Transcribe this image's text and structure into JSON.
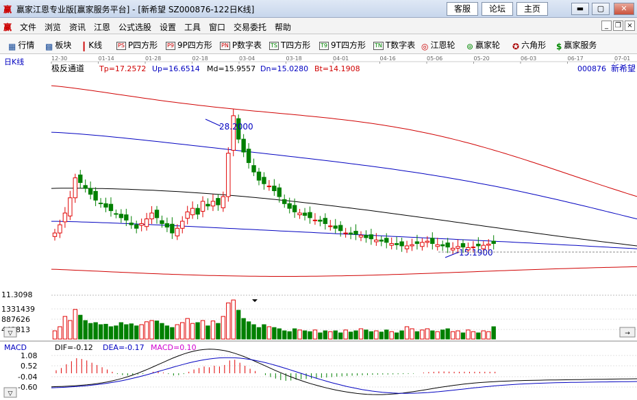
{
  "window": {
    "logo": "赢",
    "title": "赢家江恩专业版[赢家服务平台] - [新希望  SZ000876-122日K线]",
    "buttons": [
      "客服",
      "论坛",
      "主页"
    ]
  },
  "menu": [
    "文件",
    "浏览",
    "资讯",
    "江恩",
    "公式选股",
    "设置",
    "工具",
    "窗口",
    "交易委托",
    "帮助"
  ],
  "toolbar": [
    "行情",
    "板块",
    "K线",
    "P四方形",
    "9P四方形",
    "P数字表",
    "T四方形",
    "9T四方形",
    "T数字表",
    "江恩轮",
    "赢家轮",
    "六角形",
    "赢家服务"
  ],
  "toolbar_icons": [
    "grid-icon",
    "blocks-icon",
    "candle-icon",
    "PS",
    "P9",
    "PN",
    "TS",
    "T9",
    "TN",
    "wheel-icon",
    "big-wheel-icon",
    "hexagon-icon",
    "dollar-icon"
  ],
  "chart_header": {
    "period": "日K线",
    "indicator": "极反通道",
    "tp": "Tp=17.2572",
    "up": "Up=16.6514",
    "md": "Md=15.9557",
    "dn": "Dn=15.0280",
    "bt": "Bt=14.1908",
    "stock_code": "000876",
    "stock_name": "新希望"
  },
  "dates": [
    "12-30",
    "01-14",
    "01-28",
    "02-18",
    "03-04",
    "03-18",
    "04-01",
    "04-16",
    "05-06",
    "05-20",
    "06-03",
    "06-17",
    "07-01"
  ],
  "annotations": {
    "high": "28.2000",
    "low": "15.1900",
    "axis_low": "11.3098"
  },
  "volume_axis": [
    "1331439",
    "887626",
    "443813"
  ],
  "macd": {
    "label": "MACD",
    "dif": "DIF=-0.12",
    "dea": "DEA=-0.17",
    "macd": "MACD=0.10",
    "axis": [
      "1.08",
      "0.52",
      "-0.04",
      "-0.60"
    ]
  },
  "colors": {
    "up": "#e00000",
    "down": "#008000",
    "channel_outer": "#d00000",
    "channel_inner": "#0000c0",
    "mid": "#000000"
  },
  "chart_data": {
    "type": "candlestick",
    "close": [
      16.5,
      17.2,
      18.2,
      19.5,
      21.2,
      20.8,
      20.3,
      19.8,
      19.3,
      19.0,
      18.7,
      18.4,
      18.1,
      17.8,
      17.6,
      17.2,
      16.9,
      17.3,
      17.7,
      18.2,
      17.8,
      17.3,
      17.0,
      16.5,
      16.9,
      17.5,
      18.3,
      18.6,
      18.1,
      19.2,
      18.8,
      19.2,
      18.9,
      19.6,
      23.3,
      26.5,
      24.5,
      23.4,
      22.5,
      21.7,
      21.0,
      20.7,
      20.5,
      20.1,
      19.6,
      19.0,
      18.6,
      18.3,
      18.2,
      18.0,
      17.8,
      17.6,
      17.5,
      17.3,
      17.1,
      16.9,
      16.7,
      16.5,
      16.4,
      16.4,
      16.3,
      16.1,
      16.0,
      15.9,
      15.8,
      15.7,
      15.6,
      15.5,
      15.4,
      15.4,
      15.5,
      15.6,
      15.7,
      15.8,
      15.6,
      15.5,
      15.4,
      15.3,
      15.2,
      15.35,
      15.3,
      15.25,
      15.3,
      15.4,
      15.45,
      15.55,
      15.6
    ],
    "volume_relative": [
      0.2,
      0.3,
      0.55,
      0.45,
      0.72,
      0.58,
      0.45,
      0.38,
      0.4,
      0.35,
      0.36,
      0.3,
      0.32,
      0.4,
      0.35,
      0.37,
      0.32,
      0.35,
      0.42,
      0.45,
      0.44,
      0.38,
      0.32,
      0.28,
      0.35,
      0.4,
      0.5,
      0.38,
      0.4,
      0.45,
      0.32,
      0.44,
      0.38,
      0.55,
      0.88,
      0.95,
      0.7,
      0.5,
      0.42,
      0.35,
      0.28,
      0.35,
      0.3,
      0.28,
      0.25,
      0.2,
      0.18,
      0.25,
      0.22,
      0.2,
      0.18,
      0.22,
      0.15,
      0.2,
      0.18,
      0.2,
      0.15,
      0.22,
      0.17,
      0.2,
      0.25,
      0.22,
      0.18,
      0.2,
      0.17,
      0.22,
      0.18,
      0.15,
      0.2,
      0.3,
      0.25,
      0.18,
      0.22,
      0.25,
      0.2,
      0.18,
      0.22,
      0.25,
      0.18,
      0.2,
      0.15,
      0.22,
      0.18,
      0.15,
      0.2,
      0.18,
      0.3
    ],
    "macd_histogram": [
      0.2,
      0.35,
      0.6,
      0.8,
      1.0,
      0.95,
      0.85,
      0.7,
      0.55,
      0.4,
      0.25,
      0.1,
      -0.05,
      -0.12,
      -0.15,
      -0.1,
      -0.08,
      -0.05,
      0.0,
      0.1,
      0.15,
      0.05,
      -0.05,
      -0.15,
      -0.12,
      -0.05,
      0.1,
      0.25,
      0.35,
      0.45,
      0.4,
      0.5,
      0.45,
      0.55,
      0.85,
      0.9,
      0.7,
      0.5,
      0.3,
      0.15,
      0.0,
      -0.12,
      -0.25,
      -0.35,
      -0.45,
      -0.5,
      -0.48,
      -0.42,
      -0.4,
      -0.38,
      -0.35,
      -0.32,
      -0.3,
      -0.28,
      -0.25,
      -0.22,
      -0.2,
      -0.18,
      -0.16,
      -0.15,
      -0.13,
      -0.12,
      -0.1,
      -0.09,
      -0.08,
      -0.08,
      -0.07,
      -0.06,
      -0.05,
      -0.04,
      -0.03,
      0.0,
      0.05,
      0.08,
      0.1,
      0.12,
      0.12,
      0.11,
      0.1,
      0.1,
      0.1,
      0.1,
      0.1,
      0.1,
      0.1,
      0.1,
      0.1
    ]
  }
}
